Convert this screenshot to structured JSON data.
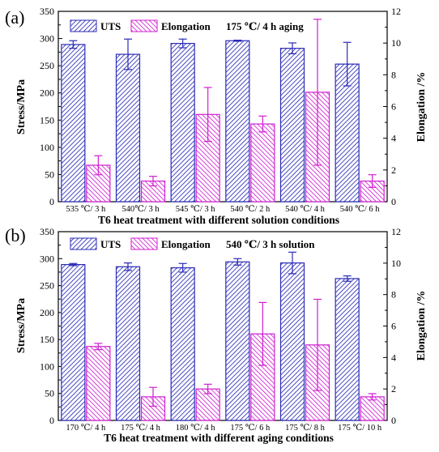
{
  "colors": {
    "uts": "#2b2bb8",
    "elongation": "#d11fd1"
  },
  "chart_data": [
    {
      "type": "bar",
      "panel_label": "(a)",
      "categories": [
        "535 ℃/ 3 h",
        "540℃/ 3 h",
        "545 ℃/ 3 h",
        "540 ℃/ 2 h",
        "540 ℃/ 4 h",
        "540 ℃/ 6 h"
      ],
      "series": [
        {
          "name": "UTS",
          "axis": "left",
          "values": [
            289,
            271,
            291,
            296,
            282,
            253
          ],
          "errors": [
            7,
            28,
            8,
            1,
            10,
            40
          ]
        },
        {
          "name": "Elongation",
          "axis": "right",
          "values": [
            2.3,
            1.3,
            5.5,
            4.9,
            6.9,
            1.3
          ],
          "errors": [
            0.6,
            0.3,
            1.7,
            0.5,
            4.6,
            0.4
          ]
        }
      ],
      "legend_note": "175 ℃/ 4 h aging",
      "xlabel": "T6 heat treatment with different solution conditions",
      "ylabel": "Stress/MPa",
      "y2label": "Elongation /%",
      "ylim": [
        0,
        350
      ],
      "y2lim": [
        0,
        12
      ],
      "yticks": [
        0,
        50,
        100,
        150,
        200,
        250,
        300,
        350
      ],
      "y2ticks": [
        0,
        2,
        4,
        6,
        8,
        10,
        12
      ],
      "legend_position": "top"
    },
    {
      "type": "bar",
      "panel_label": "(b)",
      "categories": [
        "170 ℃/ 4 h",
        "175 ℃/ 4 h",
        "180 ℃/ 4 h",
        "175 ℃/ 6 h",
        "175 ℃/ 8 h",
        "175 ℃/ 10 h"
      ],
      "series": [
        {
          "name": "UTS",
          "axis": "left",
          "values": [
            289,
            285,
            283,
            294,
            292,
            263
          ],
          "errors": [
            2,
            7,
            8,
            6,
            20,
            5
          ]
        },
        {
          "name": "Elongation",
          "axis": "right",
          "values": [
            4.7,
            1.5,
            2.0,
            5.5,
            4.8,
            1.5
          ],
          "errors": [
            0.2,
            0.6,
            0.3,
            2.0,
            2.9,
            0.2
          ]
        }
      ],
      "legend_note": "540 ℃/ 3 h solution",
      "xlabel": "T6 heat treatment with different aging conditions",
      "ylabel": "Stress/MPa",
      "y2label": "Elongation /%",
      "ylim": [
        0,
        350
      ],
      "y2lim": [
        0,
        12
      ],
      "yticks": [
        0,
        50,
        100,
        150,
        200,
        250,
        300,
        350
      ],
      "y2ticks": [
        0,
        2,
        4,
        6,
        8,
        10,
        12
      ],
      "legend_position": "top"
    }
  ]
}
